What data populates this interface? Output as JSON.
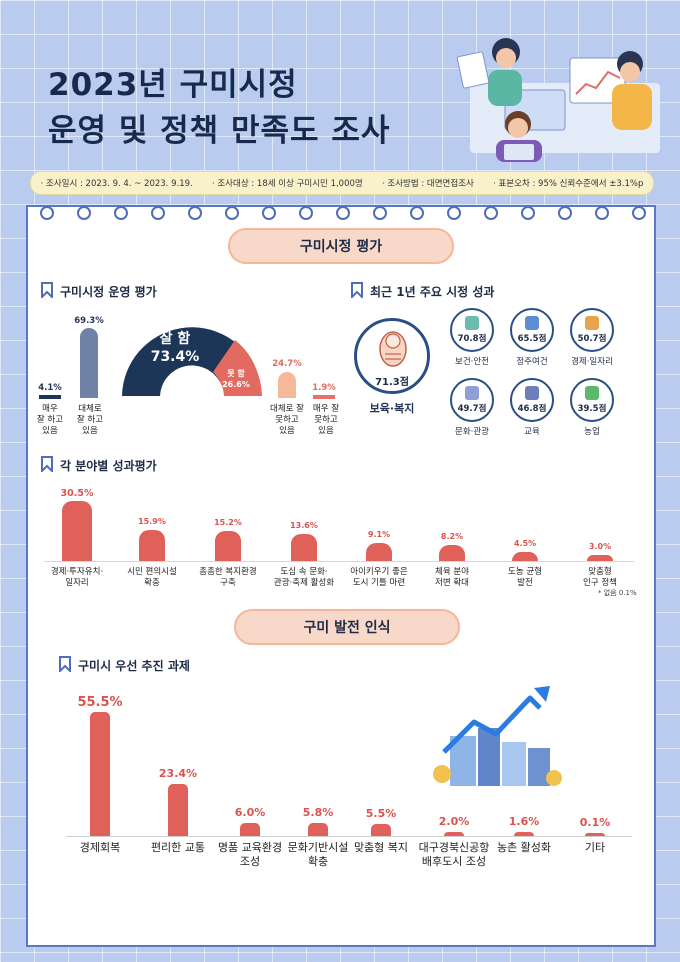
{
  "title": {
    "line1": "2023년 구미시정",
    "line2": "운영 및 정책 만족도 조사"
  },
  "survey_info": [
    "· 조사일시 : 2023. 9. 4. ~ 2023. 9.19.",
    "· 조사대상 : 18세 이상 구미시민 1,000명",
    "· 조사방법 : 대면면접조사",
    "· 표본오차 : 95% 신뢰수준에서 ±3.1%p"
  ],
  "section1": {
    "title": "구미시정 평가"
  },
  "section2": {
    "title": "구미 발전 인식"
  },
  "operation": {
    "heading": "구미시정 운영 평가",
    "good_label": "잘 함",
    "good_value": "73.4%",
    "bad_label": "못 함",
    "bad_value": "26.6%"
  },
  "achievements": {
    "heading": "최근 1년 주요 시정 성과",
    "main": {
      "score": "71.3점",
      "label": "보육·복지"
    },
    "items": [
      {
        "score": "70.8점",
        "label": "보건·안전"
      },
      {
        "score": "65.5점",
        "label": "정주여건"
      },
      {
        "score": "50.7점",
        "label": "경제·일자리"
      },
      {
        "score": "49.7점",
        "label": "문화·관광"
      },
      {
        "score": "46.8점",
        "label": "교육"
      },
      {
        "score": "39.5점",
        "label": "농업"
      }
    ]
  },
  "field_heading": "각 분야별 성과평가",
  "field_note": "* 없음 0.1%",
  "priority_heading": "구미시 우선 추진 과제",
  "chart_data": [
    {
      "type": "bar",
      "title": "구미시정 운영 평가",
      "categories": [
        "매우 잘 하고 있음",
        "대체로 잘 하고 있음",
        "대체로 잘 못하고 있음",
        "매우 잘 못하고 있음"
      ],
      "values": [
        4.1,
        69.3,
        24.7,
        1.9
      ],
      "labels": [
        "4.1%",
        "69.3%",
        "24.7%",
        "1.9%"
      ],
      "colors": [
        "#1f3457",
        "#6f82a6",
        "#f5b999",
        "#e8706a"
      ]
    },
    {
      "type": "pie",
      "categories": [
        "잘 함",
        "못 함"
      ],
      "values": [
        73.4,
        26.6
      ],
      "colors": [
        "#1d3557",
        "#e36a60"
      ]
    },
    {
      "type": "bar",
      "title": "각 분야별 성과평가",
      "categories": [
        "경제·투자유치·일자리",
        "시민 편의시설 확충",
        "촘촘한 복지환경 구축",
        "도심 속 문화·관광·축제 활성화",
        "아이키우기 좋은 도시 기틀 마련",
        "체육 분야 저변 확대",
        "도농 균형 발전",
        "맞춤형 인구 정책"
      ],
      "values": [
        30.5,
        15.9,
        15.2,
        13.6,
        9.1,
        8.2,
        4.5,
        3.0
      ],
      "labels": [
        "30.5%",
        "15.9%",
        "15.2%",
        "13.6%",
        "9.1%",
        "8.2%",
        "4.5%",
        "3.0%"
      ]
    },
    {
      "type": "bar",
      "title": "구미시 우선 추진 과제",
      "categories": [
        "경제회복",
        "편리한 교통",
        "명품 교육환경 조성",
        "문화기반시설 확충",
        "맞춤형 복지",
        "대구경북신공항 배후도시 조성",
        "농촌 활성화",
        "기타"
      ],
      "values": [
        55.5,
        23.4,
        6.0,
        5.8,
        5.5,
        2.0,
        1.6,
        0.1
      ],
      "labels": [
        "55.5%",
        "23.4%",
        "6.0%",
        "5.8%",
        "5.5%",
        "2.0%",
        "1.6%",
        "0.1%"
      ]
    }
  ]
}
